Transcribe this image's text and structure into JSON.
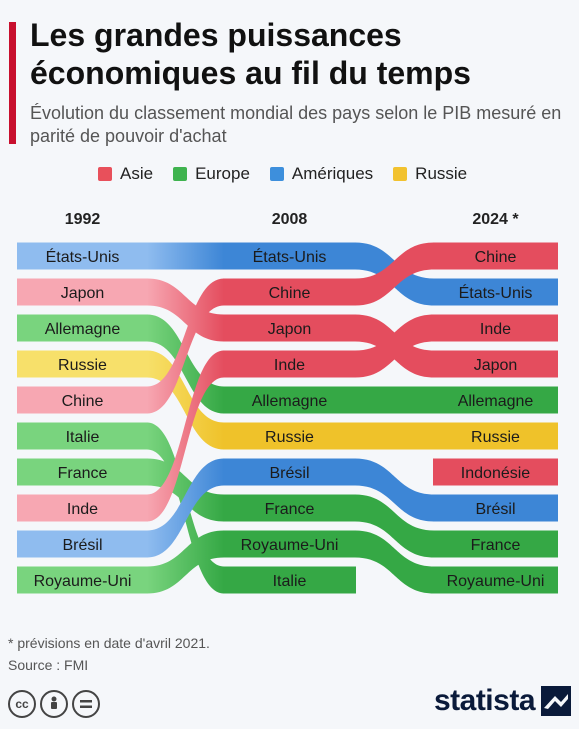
{
  "header": {
    "title": "Les grandes puissances économiques au fil du temps",
    "subtitle": "Évolution du classement mondial des pays selon le PIB mesuré en parité de pouvoir d'achat"
  },
  "legend": [
    {
      "label": "Asie",
      "color": "#e8505b"
    },
    {
      "label": "Europe",
      "color": "#3fb34f"
    },
    {
      "label": "Amériques",
      "color": "#3d8fdc"
    },
    {
      "label": "Russie",
      "color": "#f2c22f"
    }
  ],
  "chart_data": {
    "type": "bump",
    "years": [
      "1992",
      "2008",
      "2024 *"
    ],
    "series": [
      {
        "name": "États-Unis",
        "group": "Amériques",
        "ranks": [
          1,
          1,
          2
        ]
      },
      {
        "name": "Japon",
        "group": "Asie",
        "ranks": [
          2,
          3,
          4
        ]
      },
      {
        "name": "Allemagne",
        "group": "Europe",
        "ranks": [
          3,
          5,
          5
        ]
      },
      {
        "name": "Russie",
        "group": "Russie",
        "ranks": [
          4,
          6,
          6
        ]
      },
      {
        "name": "Chine",
        "group": "Asie",
        "ranks": [
          5,
          2,
          1
        ]
      },
      {
        "name": "Italie",
        "group": "Europe",
        "ranks": [
          6,
          10,
          null
        ]
      },
      {
        "name": "France",
        "group": "Europe",
        "ranks": [
          7,
          8,
          9
        ]
      },
      {
        "name": "Inde",
        "group": "Asie",
        "ranks": [
          8,
          4,
          3
        ]
      },
      {
        "name": "Brésil",
        "group": "Amériques",
        "ranks": [
          9,
          7,
          8
        ]
      },
      {
        "name": "Royaume-Uni",
        "group": "Europe",
        "ranks": [
          10,
          9,
          10
        ]
      },
      {
        "name": "Indonésie",
        "group": "Asie",
        "ranks": [
          null,
          null,
          7
        ]
      }
    ],
    "colors": {
      "Asie": {
        "light": "#f7a7b2",
        "dark": "#e44d5e"
      },
      "Europe": {
        "light": "#79d47e",
        "dark": "#35a845"
      },
      "Amériques": {
        "light": "#8fbcef",
        "dark": "#3d86d6"
      },
      "Russie": {
        "light": "#f7e06a",
        "dark": "#efc22a"
      }
    }
  },
  "footer": {
    "note": "* prévisions en date d'avril 2021.",
    "source": "Source : FMI",
    "brand": "statista"
  },
  "icons": [
    "cc-icon",
    "by-icon",
    "nd-icon",
    "statista-logo-icon"
  ]
}
